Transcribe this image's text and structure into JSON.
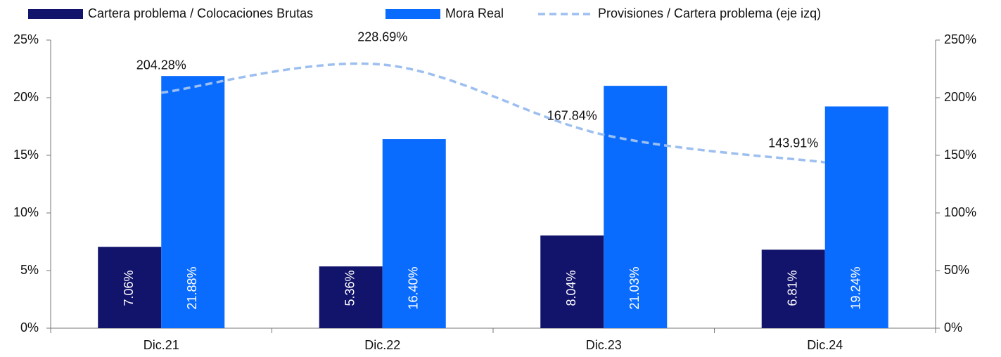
{
  "chart_data": {
    "type": "bar",
    "categories": [
      "Dic.21",
      "Dic.22",
      "Dic.23",
      "Dic.24"
    ],
    "series": [
      {
        "name": "Cartera problema / Colocaciones Brutas",
        "color": "#12136b",
        "values": [
          7.06,
          5.36,
          8.04,
          6.81
        ],
        "value_labels": [
          "7.06%",
          "5.36%",
          "8.04%",
          "6.81%"
        ]
      },
      {
        "name": "Mora Real",
        "color": "#0a6cff",
        "values": [
          21.88,
          16.4,
          21.03,
          19.24
        ],
        "value_labels": [
          "21.88%",
          "16.40%",
          "21.03%",
          "19.24%"
        ]
      },
      {
        "name": "Provisiones / Cartera problema (eje izq)",
        "color": "#9dbff0",
        "type": "line",
        "axis": "y2",
        "values": [
          204.28,
          228.69,
          167.84,
          143.91
        ],
        "value_labels": [
          "204.28%",
          "228.69%",
          "167.84%",
          "143.91%"
        ]
      }
    ],
    "ylim": [
      0,
      25
    ],
    "yticks": [
      {
        "value": 0,
        "label": "0%"
      },
      {
        "value": 5,
        "label": "5%"
      },
      {
        "value": 10,
        "label": "10%"
      },
      {
        "value": 15,
        "label": "15%"
      },
      {
        "value": 20,
        "label": "20%"
      },
      {
        "value": 25,
        "label": "25%"
      }
    ],
    "y2lim": [
      0,
      250
    ],
    "y2ticks": [
      {
        "value": 0,
        "label": "0%"
      },
      {
        "value": 50,
        "label": "50%"
      },
      {
        "value": 100,
        "label": "100%"
      },
      {
        "value": 150,
        "label": "150%"
      },
      {
        "value": 200,
        "label": "200%"
      },
      {
        "value": 250,
        "label": "250%"
      }
    ],
    "legend": "top"
  }
}
